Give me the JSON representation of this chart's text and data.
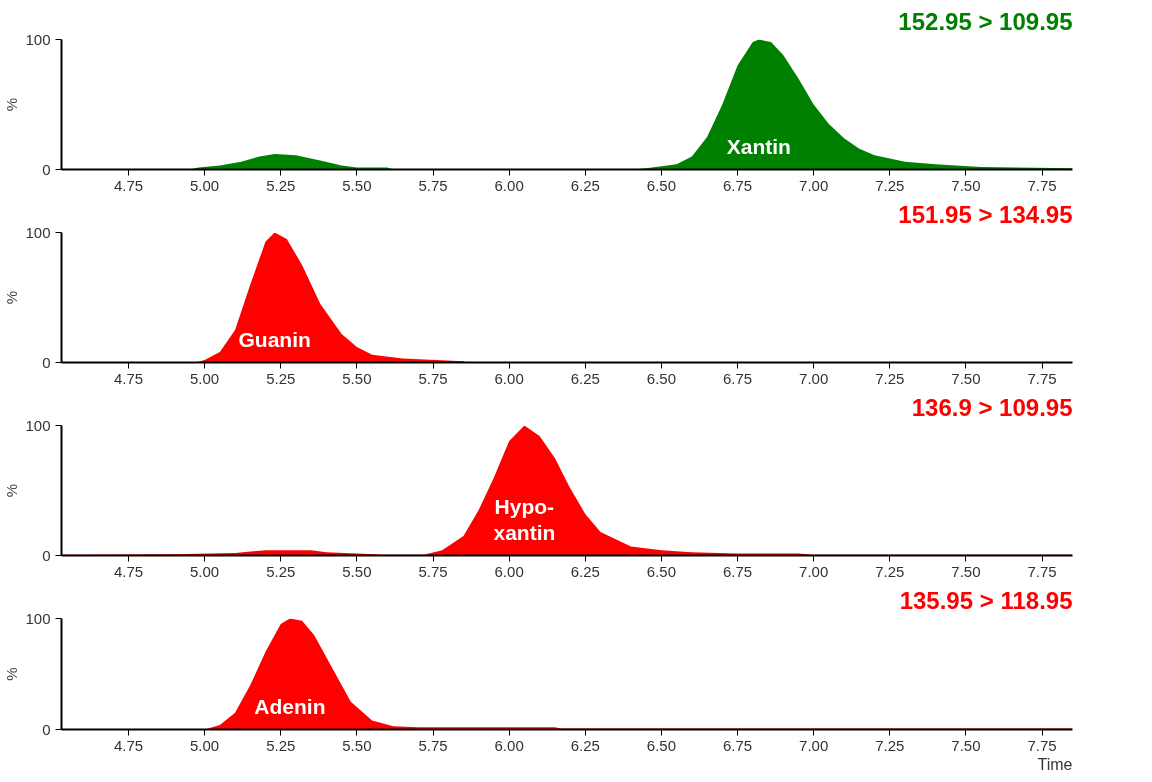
{
  "chart_data": [
    {
      "type": "area",
      "title": "152.95 > 109.95",
      "ylabel": "%",
      "xlim": [
        4.53,
        7.85
      ],
      "ylim": [
        0,
        100
      ],
      "xticks": [
        4.75,
        {
          "value": 5.0,
          "label": "5.00"
        },
        5.25,
        {
          "value": 5.5,
          "label": "5.50"
        },
        5.75,
        {
          "value": 6.0,
          "label": "6.00"
        },
        6.25,
        {
          "value": 6.5,
          "label": "6.50"
        },
        6.75,
        {
          "value": 7.0,
          "label": "7.00"
        },
        7.25,
        {
          "value": 7.5,
          "label": "7.50"
        },
        7.75
      ],
      "yticks": [
        0,
        100
      ],
      "grid": false,
      "annotations": [
        "Xantin"
      ],
      "series": [
        {
          "color": "#008000",
          "x": [
            4.53,
            4.95,
            4.98,
            5.05,
            5.12,
            5.18,
            5.23,
            5.3,
            5.38,
            5.45,
            5.5,
            5.6,
            5.62,
            6.4,
            6.45,
            6.55,
            6.6,
            6.65,
            6.7,
            6.75,
            6.8,
            6.82,
            6.86,
            6.9,
            6.95,
            7.0,
            7.05,
            7.1,
            7.15,
            7.2,
            7.3,
            7.4,
            7.55,
            7.85
          ],
          "values": [
            0,
            0,
            1.5,
            3,
            6,
            10,
            12,
            11,
            7,
            3,
            1.5,
            1.5,
            0,
            0,
            1,
            4,
            10,
            25,
            50,
            80,
            98,
            100,
            98,
            88,
            70,
            50,
            35,
            24,
            16,
            11,
            6,
            4,
            2,
            1
          ]
        }
      ]
    },
    {
      "type": "area",
      "title": "151.95 > 134.95",
      "ylabel": "%",
      "xlim": [
        4.53,
        7.85
      ],
      "ylim": [
        0,
        100
      ],
      "xticks": [
        4.75,
        {
          "value": 5.0,
          "label": "5.00"
        },
        5.25,
        {
          "value": 5.5,
          "label": "5.50"
        },
        5.75,
        {
          "value": 6.0,
          "label": "6.00"
        },
        6.25,
        {
          "value": 6.5,
          "label": "6.50"
        },
        6.75,
        {
          "value": 7.0,
          "label": "7.00"
        },
        7.25,
        {
          "value": 7.5,
          "label": "7.50"
        },
        7.75
      ],
      "yticks": [
        0,
        100
      ],
      "grid": false,
      "annotations": [
        "Guanin"
      ],
      "series": [
        {
          "color": "#ff0000",
          "x": [
            4.53,
            4.97,
            5.0,
            5.05,
            5.1,
            5.15,
            5.2,
            5.23,
            5.27,
            5.32,
            5.38,
            5.45,
            5.5,
            5.55,
            5.65,
            5.85,
            5.86,
            7.85
          ],
          "values": [
            0,
            0,
            2,
            8,
            25,
            60,
            93,
            100,
            95,
            75,
            45,
            22,
            12,
            6,
            3,
            1,
            0,
            0
          ]
        }
      ]
    },
    {
      "type": "area",
      "title": "136.9 > 109.95",
      "ylabel": "%",
      "xlim": [
        4.53,
        7.85
      ],
      "ylim": [
        0,
        100
      ],
      "xticks": [
        4.75,
        {
          "value": 5.0,
          "label": "5.00"
        },
        5.25,
        {
          "value": 5.5,
          "label": "5.50"
        },
        5.75,
        {
          "value": 6.0,
          "label": "6.00"
        },
        6.25,
        {
          "value": 6.5,
          "label": "6.50"
        },
        6.75,
        {
          "value": 7.0,
          "label": "7.00"
        },
        7.25,
        {
          "value": 7.5,
          "label": "7.50"
        },
        7.75
      ],
      "yticks": [
        0,
        100
      ],
      "grid": false,
      "annotations": [
        "Hypo-\nxantin"
      ],
      "series": [
        {
          "color": "#ff0000",
          "x": [
            4.53,
            4.9,
            5.1,
            5.2,
            5.35,
            5.4,
            5.5,
            5.6,
            5.72,
            5.78,
            5.85,
            5.9,
            5.95,
            6.0,
            6.05,
            6.1,
            6.15,
            6.2,
            6.25,
            6.3,
            6.4,
            6.5,
            6.6,
            6.75,
            6.95,
            7.0,
            7.85
          ],
          "values": [
            0.5,
            1,
            2,
            4,
            4,
            2.5,
            1.5,
            0.5,
            0.5,
            4,
            15,
            35,
            60,
            88,
            100,
            92,
            75,
            52,
            32,
            18,
            7,
            4,
            2.5,
            1.5,
            1.5,
            0.5,
            0.5
          ]
        }
      ]
    },
    {
      "type": "area",
      "title": "135.95 > 118.95",
      "ylabel": "%",
      "xlabel": "Time",
      "xlim": [
        4.53,
        7.85
      ],
      "ylim": [
        0,
        100
      ],
      "xticks": [
        4.75,
        {
          "value": 5.0,
          "label": "5.00"
        },
        5.25,
        {
          "value": 5.5,
          "label": "5.50"
        },
        5.75,
        {
          "value": 6.0,
          "label": "6.00"
        },
        6.25,
        {
          "value": 6.5,
          "label": "6.50"
        },
        6.75,
        {
          "value": 7.0,
          "label": "7.00"
        },
        7.25,
        {
          "value": 7.5,
          "label": "7.50"
        },
        7.75
      ],
      "yticks": [
        0,
        100
      ],
      "grid": false,
      "annotations": [
        "Adenin"
      ],
      "series": [
        {
          "color": "#ff0000",
          "x": [
            4.53,
            5.0,
            5.05,
            5.1,
            5.15,
            5.2,
            5.25,
            5.28,
            5.32,
            5.36,
            5.42,
            5.48,
            5.55,
            5.62,
            5.7,
            6.15,
            6.17,
            7.85
          ],
          "values": [
            0,
            0,
            4,
            15,
            40,
            70,
            95,
            100,
            98,
            85,
            55,
            25,
            8,
            3,
            2,
            2,
            1,
            1
          ]
        }
      ]
    }
  ]
}
